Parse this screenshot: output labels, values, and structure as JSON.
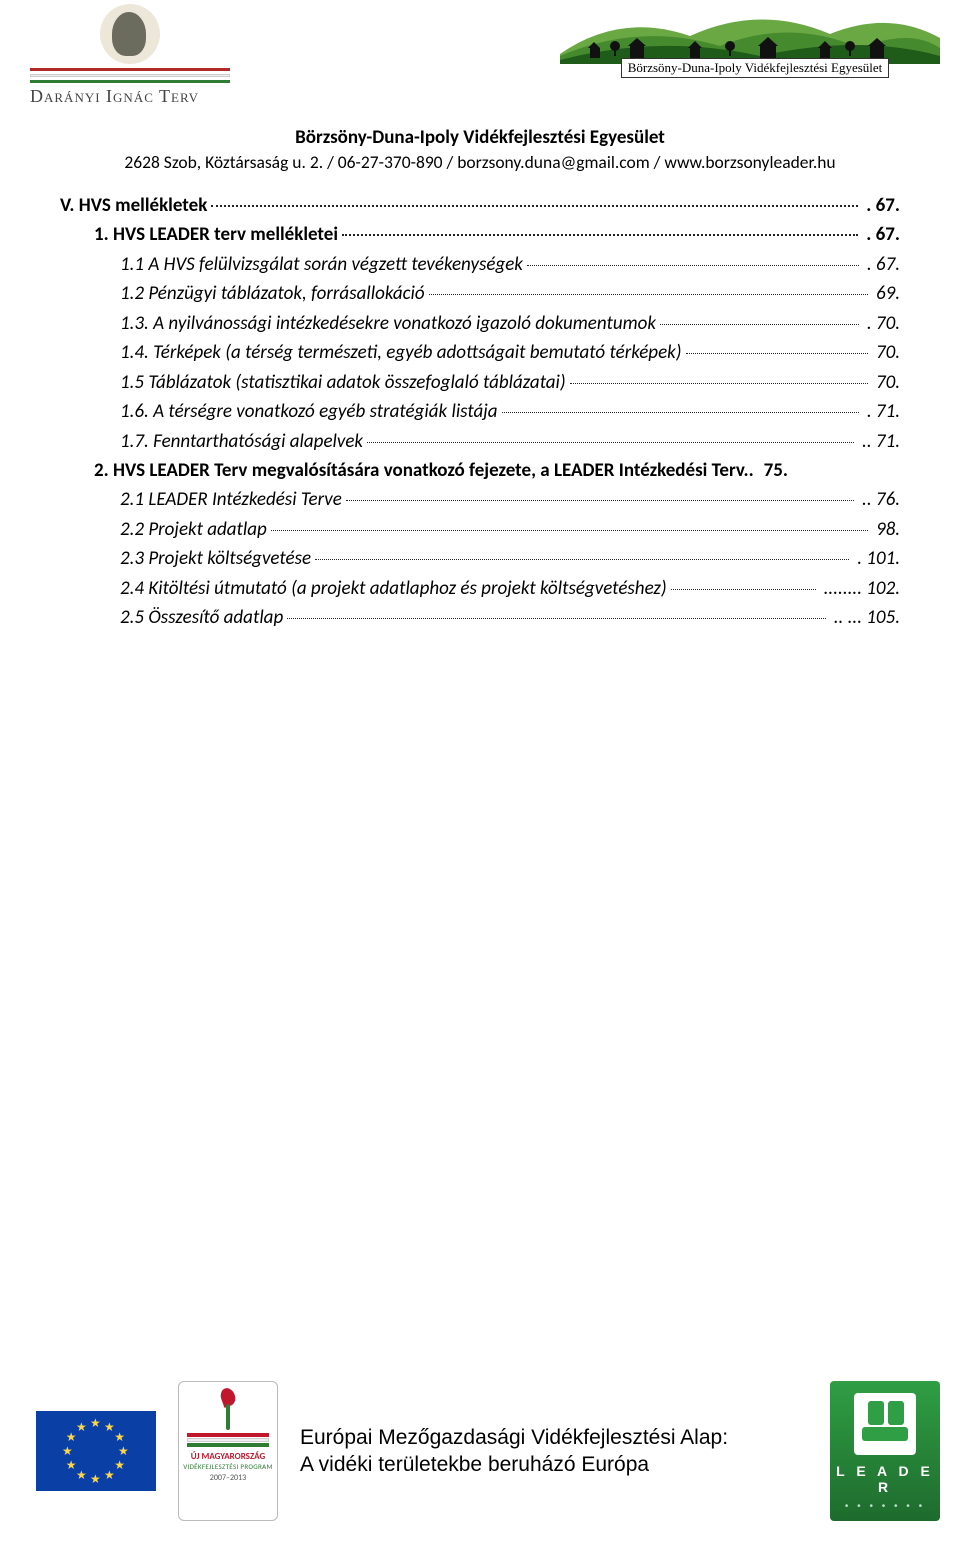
{
  "header": {
    "left_logo_text": "Darányi Ignác Terv",
    "right_banner_text": "Börzsöny-Duna-Ipoly Vidékfejlesztési Egyesület",
    "org_title": "Börzsöny-Duna-Ipoly Vidékfejlesztési Egyesület",
    "org_contact": "2628 Szob, Köztársaság u. 2. / 06-27-370-890 / borzsony.duna@gmail.com / www.borzsonyleader.hu",
    "hill_colors": {
      "back": "#6aa844",
      "mid": "#468a2e",
      "front": "#1f5c19",
      "houses": "#111111"
    }
  },
  "toc": [
    {
      "style": "bold",
      "indent": 0,
      "label": "V. HVS mellékletek",
      "trail": ".",
      "page": "67."
    },
    {
      "style": "bold",
      "indent": 1,
      "label": "1. HVS LEADER terv mellékletei",
      "trail": ".",
      "page": "67."
    },
    {
      "style": "italic",
      "indent": 2,
      "label": "1.1 A HVS felülvizsgálat során végzett tevékenységek",
      "trail": ".",
      "page": "67."
    },
    {
      "style": "italic",
      "indent": 2,
      "label": "1.2 Pénzügyi táblázatok, forrásallokáció",
      "trail": "",
      "page": "69."
    },
    {
      "style": "italic",
      "indent": 2,
      "label": "1.3. A nyilvánossági intézkedésekre vonatkozó igazoló dokumentumok",
      "trail": ".",
      "page": "70."
    },
    {
      "style": "italic",
      "indent": 2,
      "label": "1.4. Térképek (a térség természeti, egyéb adottságait bemutató térképek)",
      "trail": "",
      "page": "70."
    },
    {
      "style": "italic",
      "indent": 2,
      "label": "1.5 Táblázatok (statisztikai adatok összefoglaló táblázatai)",
      "trail": "",
      "page": "70."
    },
    {
      "style": "italic",
      "indent": 2,
      "label": "1.6. A térségre vonatkozó egyéb stratégiák listája",
      "trail": ".",
      "page": "71."
    },
    {
      "style": "italic",
      "indent": 2,
      "label": "1.7. Fenntarthatósági alapelvek",
      "trail": "..",
      "page": "71."
    },
    {
      "style": "bold",
      "indent": 1,
      "label": "2. HVS LEADER Terv megvalósítására vonatkozó fejezete, a LEADER Intézkedési Terv..",
      "trail": "",
      "page": "75.",
      "no_leader": true
    },
    {
      "style": "italic",
      "indent": 2,
      "label": "2.1  LEADER Intézkedési Terve",
      "trail": "..",
      "page": "76."
    },
    {
      "style": "italic",
      "indent": 2,
      "label": "2.2 Projekt adatlap",
      "trail": "",
      "page": "98."
    },
    {
      "style": "italic",
      "indent": 2,
      "label": "2.3 Projekt költségvetése",
      "trail": ".",
      "page": "101."
    },
    {
      "style": "italic",
      "indent": 2,
      "label": "2.4  Kitöltési útmutató (a projekt adatlaphoz és projekt költségvetéshez)",
      "trail": "........",
      "page": "102."
    },
    {
      "style": "italic",
      "indent": 2,
      "label": "2.5 Összesítő adatlap",
      "trail": ".. ...",
      "page": "105."
    }
  ],
  "footer": {
    "umvp_line1": "ÚJ MAGYARORSZÁG",
    "umvp_line2": "VIDÉKFEJLESZTÉSI PROGRAM",
    "umvp_years": "2007–2013",
    "text_line1": "Európai Mezőgazdasági Vidékfejlesztési Alap:",
    "text_line2": "A vidéki területekbe beruházó Európa",
    "leader_label": "L E A D E R",
    "eu_flag_bg": "#0a3fa6",
    "eu_star_color": "#ffd64a",
    "leader_badge_bg_top": "#2f9e44",
    "leader_badge_bg_bottom": "#1e6b2d"
  }
}
